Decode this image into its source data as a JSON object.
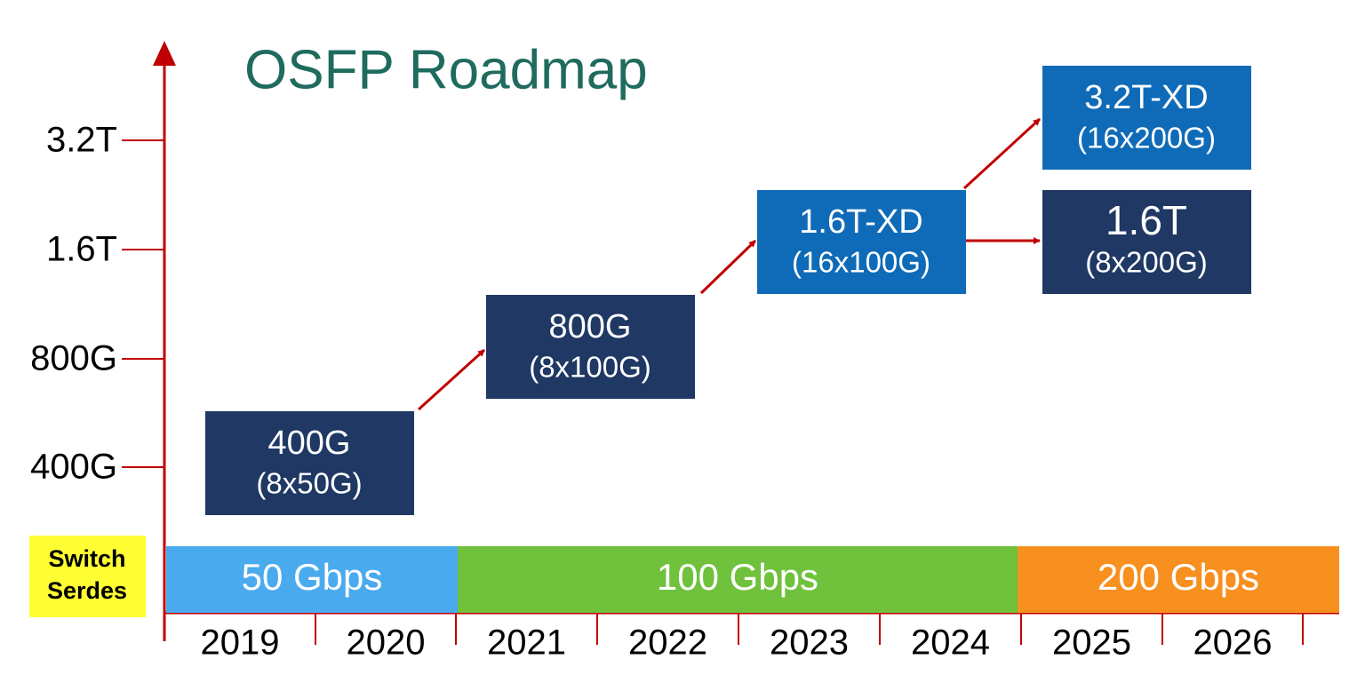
{
  "title": "OSFP Roadmap",
  "y_axis": {
    "labels": [
      "3.2T",
      "1.6T",
      "800G",
      "400G"
    ]
  },
  "boxes": [
    {
      "label": "400G",
      "sub": "(8x50G)"
    },
    {
      "label": "800G",
      "sub": "(8x100G)"
    },
    {
      "label": "1.6T-XD",
      "sub": "(16x100G)"
    },
    {
      "label": "3.2T-XD",
      "sub": "(16x200G)"
    },
    {
      "label": "1.6T",
      "sub": "(8x200G)"
    }
  ],
  "serdes": {
    "label": "Switch Serdes",
    "bands": [
      "50 Gbps",
      "100 Gbps",
      "200 Gbps"
    ]
  },
  "years": [
    "2019",
    "2020",
    "2021",
    "2022",
    "2023",
    "2024",
    "2025",
    "2026"
  ]
}
